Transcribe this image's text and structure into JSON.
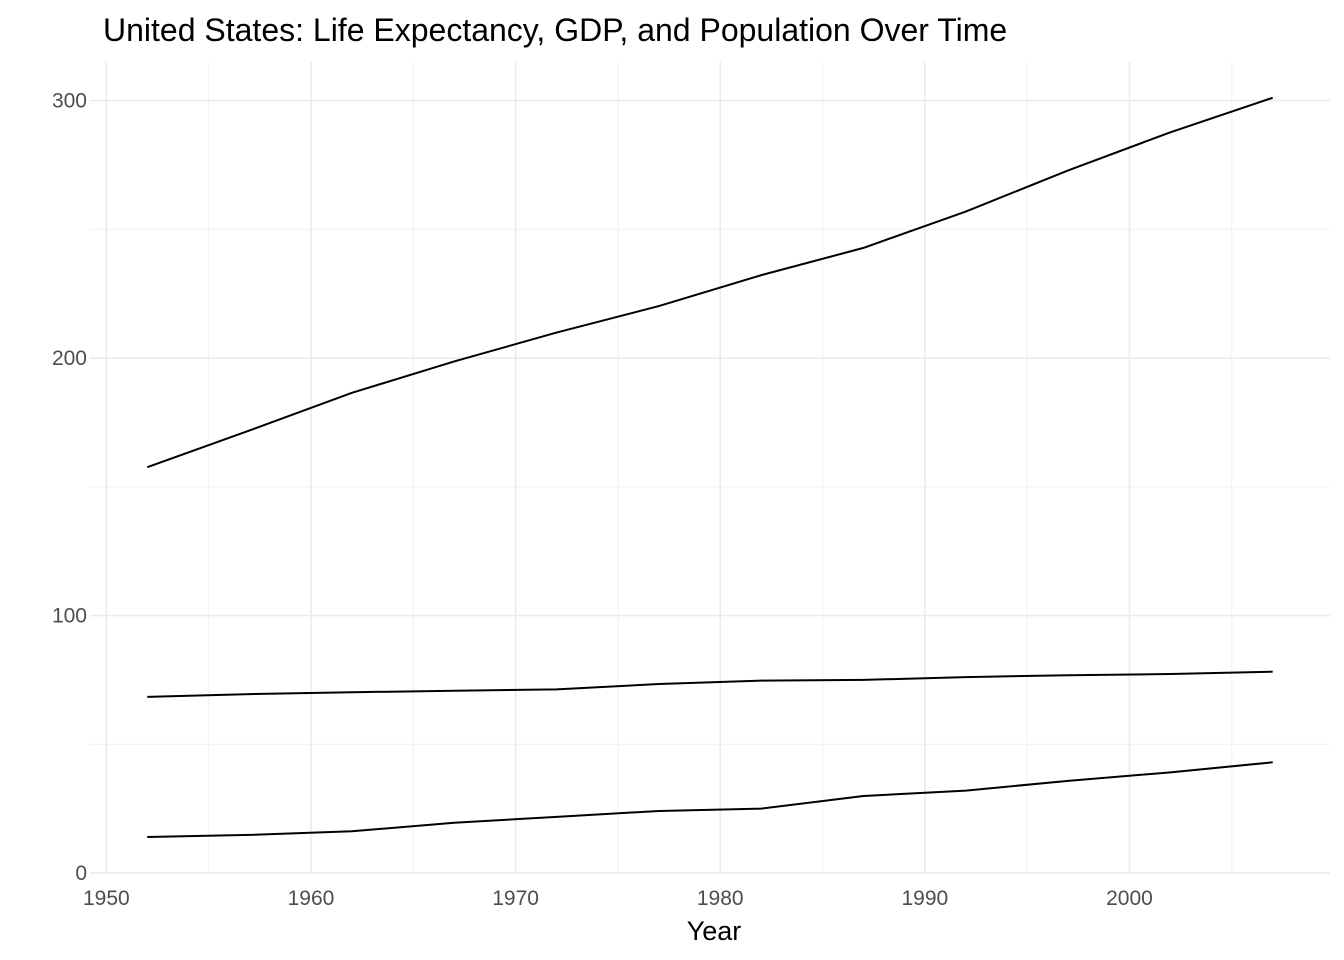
{
  "chart_data": {
    "type": "line",
    "title": "United States: Life Expectancy, GDP, and Population Over Time",
    "xlabel": "Year",
    "ylabel": "",
    "xlim": [
      1949.2,
      2009.8
    ],
    "ylim": [
      0,
      315
    ],
    "x_ticks": [
      1950,
      1960,
      1970,
      1980,
      1990,
      2000
    ],
    "x_tick_labels": [
      "1950",
      "1960",
      "1970",
      "1980",
      "1990",
      "2000"
    ],
    "x_minor_ticks": [
      1955,
      1965,
      1975,
      1985,
      1995,
      2005
    ],
    "y_ticks": [
      0,
      100,
      200,
      300
    ],
    "y_tick_labels": [
      "0",
      "100",
      "200",
      "300"
    ],
    "y_minor_ticks": [
      50,
      150,
      250
    ],
    "grid": true,
    "legend": "none",
    "line_color": "#000000",
    "x": [
      1952,
      1957,
      1962,
      1967,
      1972,
      1977,
      1982,
      1987,
      1992,
      1997,
      2002,
      2007
    ],
    "series": [
      {
        "values": [
          157.6,
          171.9,
          186.5,
          198.7,
          209.9,
          220.2,
          232.2,
          242.8,
          256.9,
          272.9,
          287.7,
          301.1
        ]
      },
      {
        "values": [
          68.4,
          69.5,
          70.2,
          70.8,
          71.3,
          73.4,
          74.7,
          75.0,
          76.1,
          76.8,
          77.3,
          78.2
        ]
      },
      {
        "values": [
          14.0,
          14.8,
          16.2,
          19.5,
          21.8,
          24.1,
          25.0,
          29.9,
          32.0,
          35.8,
          39.1,
          43.0
        ]
      }
    ]
  }
}
